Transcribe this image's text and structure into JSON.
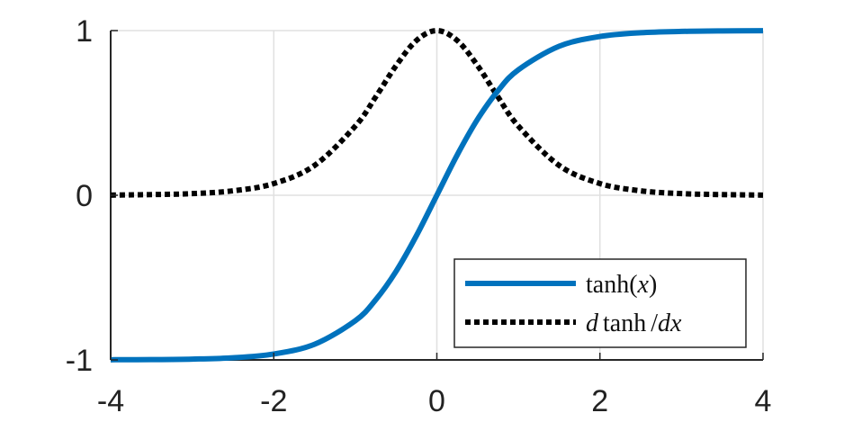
{
  "chart_data": {
    "type": "line",
    "title": "",
    "xlabel": "",
    "ylabel": "",
    "xlim": [
      -4,
      4
    ],
    "ylim": [
      -1,
      1
    ],
    "x_ticks": [
      -4,
      -2,
      0,
      2,
      4
    ],
    "y_ticks": [
      -1,
      0,
      1
    ],
    "x_tick_labels": [
      "-4",
      "-2",
      "0",
      "2",
      "4"
    ],
    "y_tick_labels": [
      "-1",
      "0",
      "1"
    ],
    "grid": true,
    "legend_position": "bottom-right",
    "x": [
      -4,
      -3.5,
      -3,
      -2.5,
      -2,
      -1.5,
      -1,
      -0.75,
      -0.5,
      -0.25,
      0,
      0.25,
      0.5,
      0.75,
      1,
      1.5,
      2,
      2.5,
      3,
      3.5,
      4
    ],
    "series": [
      {
        "name": "tanh(x)",
        "style": "solid",
        "color": "#0072BD",
        "values": [
          -0.999,
          -0.998,
          -0.995,
          -0.987,
          -0.964,
          -0.905,
          -0.762,
          -0.635,
          -0.462,
          -0.245,
          0,
          0.245,
          0.462,
          0.635,
          0.762,
          0.905,
          0.964,
          0.987,
          0.995,
          0.998,
          0.999
        ]
      },
      {
        "name": "d tanh / dx",
        "style": "dotted",
        "color": "#000000",
        "values": [
          0.001,
          0.004,
          0.01,
          0.027,
          0.071,
          0.181,
          0.42,
          0.597,
          0.787,
          0.94,
          1,
          0.94,
          0.787,
          0.597,
          0.42,
          0.181,
          0.071,
          0.027,
          0.01,
          0.004,
          0.001
        ]
      }
    ]
  },
  "legend": {
    "items": [
      {
        "fn": "tanh",
        "open": "(",
        "var": "x",
        "close": ")"
      },
      {
        "d1": "d",
        "fn": "tanh",
        "slash": "/",
        "d2": "d",
        "var": "x"
      }
    ]
  }
}
